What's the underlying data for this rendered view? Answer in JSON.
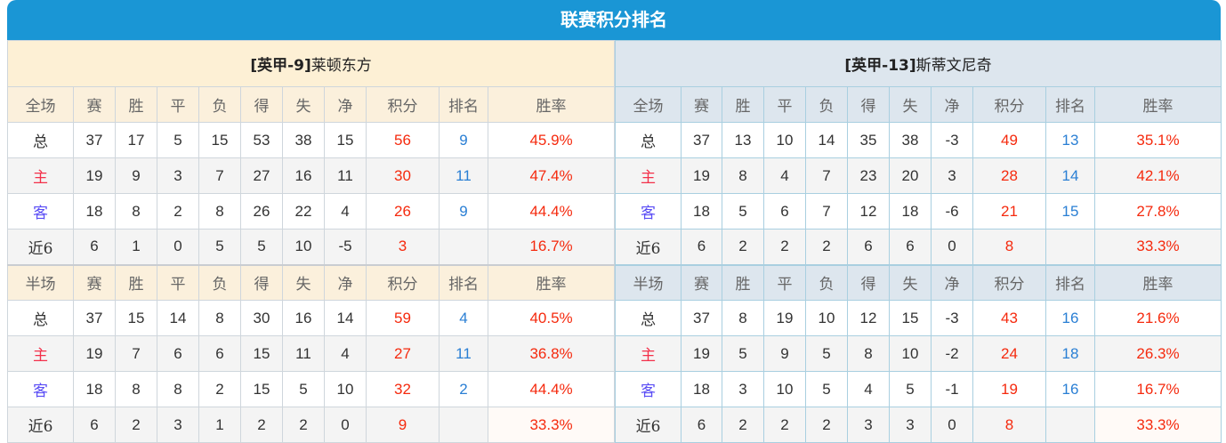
{
  "title": "联赛积分排名",
  "colors": {
    "header": "#1a96d5",
    "points": "#f52a0e",
    "rank": "#2a7fd4",
    "home": "#f3304a",
    "away": "#5a4df5"
  },
  "headers": [
    "赛",
    "胜",
    "平",
    "负",
    "得",
    "失",
    "净",
    "积分",
    "排名",
    "胜率"
  ],
  "teams": [
    {
      "prefix": "[英甲-9]",
      "name": "莱顿东方",
      "sections": [
        {
          "label": "全场",
          "rows": [
            [
              "总",
              "37",
              "17",
              "5",
              "15",
              "53",
              "38",
              "15",
              "56",
              "9",
              "45.9%"
            ],
            [
              "主",
              "19",
              "9",
              "3",
              "7",
              "27",
              "16",
              "11",
              "30",
              "11",
              "47.4%"
            ],
            [
              "客",
              "18",
              "8",
              "2",
              "8",
              "26",
              "22",
              "4",
              "26",
              "9",
              "44.4%"
            ],
            [
              "近6",
              "6",
              "1",
              "0",
              "5",
              "5",
              "10",
              "-5",
              "3",
              "",
              "16.7%"
            ]
          ]
        },
        {
          "label": "半场",
          "rows": [
            [
              "总",
              "37",
              "15",
              "14",
              "8",
              "30",
              "16",
              "14",
              "59",
              "4",
              "40.5%"
            ],
            [
              "主",
              "19",
              "7",
              "6",
              "6",
              "15",
              "11",
              "4",
              "27",
              "11",
              "36.8%"
            ],
            [
              "客",
              "18",
              "8",
              "8",
              "2",
              "15",
              "5",
              "10",
              "32",
              "2",
              "44.4%"
            ],
            [
              "近6",
              "6",
              "2",
              "3",
              "1",
              "2",
              "2",
              "0",
              "9",
              "",
              "33.3%"
            ]
          ]
        }
      ]
    },
    {
      "prefix": "[英甲-13]",
      "name": "斯蒂文尼奇",
      "sections": [
        {
          "label": "全场",
          "rows": [
            [
              "总",
              "37",
              "13",
              "10",
              "14",
              "35",
              "38",
              "-3",
              "49",
              "13",
              "35.1%"
            ],
            [
              "主",
              "19",
              "8",
              "4",
              "7",
              "23",
              "20",
              "3",
              "28",
              "14",
              "42.1%"
            ],
            [
              "客",
              "18",
              "5",
              "6",
              "7",
              "12",
              "18",
              "-6",
              "21",
              "15",
              "27.8%"
            ],
            [
              "近6",
              "6",
              "2",
              "2",
              "2",
              "6",
              "6",
              "0",
              "8",
              "",
              "33.3%"
            ]
          ]
        },
        {
          "label": "半场",
          "rows": [
            [
              "总",
              "37",
              "8",
              "19",
              "10",
              "12",
              "15",
              "-3",
              "43",
              "16",
              "21.6%"
            ],
            [
              "主",
              "19",
              "5",
              "9",
              "5",
              "8",
              "10",
              "-2",
              "24",
              "18",
              "26.3%"
            ],
            [
              "客",
              "18",
              "3",
              "10",
              "5",
              "4",
              "5",
              "-1",
              "19",
              "16",
              "16.7%"
            ],
            [
              "近6",
              "6",
              "2",
              "2",
              "2",
              "3",
              "3",
              "0",
              "8",
              "",
              "33.3%"
            ]
          ]
        }
      ]
    }
  ]
}
